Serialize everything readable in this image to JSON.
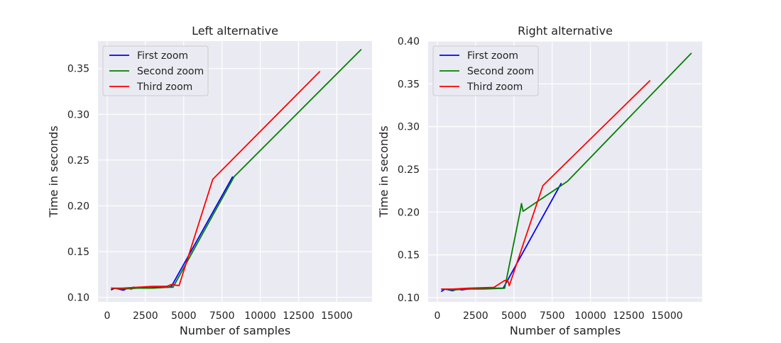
{
  "chart_data": [
    {
      "type": "line",
      "title": "Left alternative",
      "xlabel": "Number of samples",
      "ylabel": "Time in seconds",
      "xlim": [
        -600,
        17300
      ],
      "ylim": [
        0.095,
        0.38
      ],
      "xticks": [
        0,
        2500,
        5000,
        7500,
        10000,
        12500,
        15000
      ],
      "yticks": [
        0.1,
        0.15,
        0.2,
        0.25,
        0.3,
        0.35
      ],
      "xtick_labels": [
        "0",
        "2500",
        "5000",
        "7500",
        "10000",
        "12500",
        "15000"
      ],
      "ytick_labels": [
        "0.10",
        "0.15",
        "0.20",
        "0.25",
        "0.30",
        "0.35"
      ],
      "legend": "top-left",
      "grid": true,
      "series": [
        {
          "name": "First zoom",
          "color": "#0000ff",
          "x": [
            250,
            500,
            750,
            1000,
            1100,
            1300,
            1600,
            1700,
            2000,
            4000,
            4200,
            8200
          ],
          "y": [
            0.108,
            0.11,
            0.109,
            0.108,
            0.108,
            0.11,
            0.109,
            0.111,
            0.11,
            0.111,
            0.112,
            0.232
          ]
        },
        {
          "name": "Second zoom",
          "color": "#008000",
          "x": [
            250,
            1000,
            2000,
            3000,
            4000,
            4300,
            8300,
            16600
          ],
          "y": [
            0.11,
            0.109,
            0.11,
            0.11,
            0.111,
            0.111,
            0.232,
            0.371
          ]
        },
        {
          "name": "Third zoom",
          "color": "#ff0000",
          "x": [
            250,
            1000,
            2000,
            3000,
            3900,
            4200,
            4600,
            4700,
            6900,
            13900
          ],
          "y": [
            0.11,
            0.11,
            0.111,
            0.112,
            0.112,
            0.114,
            0.113,
            0.113,
            0.229,
            0.347
          ]
        }
      ]
    },
    {
      "type": "line",
      "title": "Right alternative",
      "xlabel": "Number of samples",
      "ylabel": "Time in seconds",
      "xlim": [
        -600,
        17300
      ],
      "ylim": [
        0.095,
        0.4
      ],
      "xticks": [
        0,
        2500,
        5000,
        7500,
        10000,
        12500,
        15000
      ],
      "yticks": [
        0.1,
        0.15,
        0.2,
        0.25,
        0.3,
        0.35,
        0.4
      ],
      "xtick_labels": [
        "0",
        "2500",
        "5000",
        "7500",
        "10000",
        "12500",
        "15000"
      ],
      "ytick_labels": [
        "0.10",
        "0.15",
        "0.20",
        "0.25",
        "0.30",
        "0.35",
        "0.40"
      ],
      "legend": "top-left",
      "grid": true,
      "series": [
        {
          "name": "First zoom",
          "color": "#0000ff",
          "x": [
            250,
            500,
            750,
            1000,
            1300,
            1600,
            2000,
            3000,
            4300,
            8100
          ],
          "y": [
            0.107,
            0.11,
            0.109,
            0.108,
            0.11,
            0.109,
            0.11,
            0.111,
            0.111,
            0.234
          ]
        },
        {
          "name": "Second zoom",
          "color": "#008000",
          "x": [
            250,
            1000,
            2000,
            3000,
            4400,
            5400,
            5500,
            5600,
            8500,
            16600
          ],
          "y": [
            0.11,
            0.109,
            0.11,
            0.11,
            0.111,
            0.2,
            0.21,
            0.201,
            0.236,
            0.386
          ]
        },
        {
          "name": "Third zoom",
          "color": "#ff0000",
          "x": [
            250,
            1000,
            2000,
            3700,
            4400,
            4600,
            4700,
            6900,
            13900
          ],
          "y": [
            0.11,
            0.11,
            0.111,
            0.112,
            0.12,
            0.12,
            0.114,
            0.231,
            0.354
          ]
        }
      ]
    }
  ]
}
